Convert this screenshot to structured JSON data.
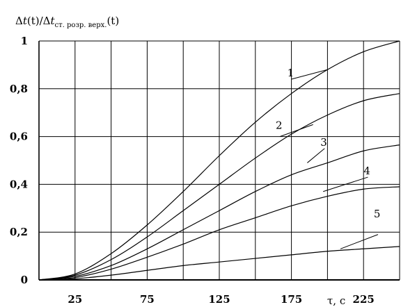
{
  "chart_data": {
    "type": "line",
    "title": "",
    "ylabel": {
      "main_prefix": "Δ",
      "main_var": "t",
      "main_arg": "(t)/Δ",
      "den_var": "t",
      "den_sub": "ст. розр. верх.",
      "den_arg": "(t)"
    },
    "xlabel": "τ, с",
    "xlim": [
      0,
      250
    ],
    "ylim": [
      0,
      1
    ],
    "x_gridlines": [
      0,
      25,
      50,
      75,
      100,
      125,
      150,
      175,
      200,
      225,
      250
    ],
    "y_gridlines": [
      0,
      0.2,
      0.4,
      0.6,
      0.8,
      1
    ],
    "x_ticks": [
      {
        "value": 25,
        "label": "25"
      },
      {
        "value": 75,
        "label": "75"
      },
      {
        "value": 125,
        "label": "125"
      },
      {
        "value": 175,
        "label": "175"
      },
      {
        "value": 225,
        "label": "225"
      }
    ],
    "y_ticks": [
      {
        "value": 0,
        "label": "0"
      },
      {
        "value": 0.2,
        "label": "0,2"
      },
      {
        "value": 0.4,
        "label": "0,4"
      },
      {
        "value": 0.6,
        "label": "0,6"
      },
      {
        "value": 0.8,
        "label": "0,8"
      },
      {
        "value": 1,
        "label": "1"
      }
    ],
    "grid": true,
    "x": [
      0,
      25,
      50,
      75,
      100,
      125,
      150,
      175,
      200,
      225,
      250
    ],
    "series": [
      {
        "name": "1",
        "values": [
          0,
          0.025,
          0.11,
          0.23,
          0.37,
          0.52,
          0.66,
          0.78,
          0.88,
          0.955,
          1.0
        ],
        "label_at": [
          175,
          0.84
        ],
        "leader": [
          [
            175,
            0.84
          ],
          [
            200,
            0.88
          ]
        ]
      },
      {
        "name": "2",
        "values": [
          0,
          0.02,
          0.085,
          0.18,
          0.29,
          0.4,
          0.51,
          0.61,
          0.69,
          0.75,
          0.78
        ],
        "label_at": [
          167,
          0.62
        ],
        "leader": [
          [
            167,
            0.6
          ],
          [
            190,
            0.65
          ]
        ]
      },
      {
        "name": "3",
        "values": [
          0,
          0.015,
          0.06,
          0.13,
          0.21,
          0.29,
          0.37,
          0.44,
          0.49,
          0.54,
          0.565
        ],
        "label_at": [
          198,
          0.55
        ],
        "leader": [
          [
            186,
            0.49
          ],
          [
            198,
            0.55
          ]
        ]
      },
      {
        "name": "4",
        "values": [
          0,
          0.01,
          0.045,
          0.095,
          0.15,
          0.21,
          0.26,
          0.31,
          0.35,
          0.38,
          0.39
        ],
        "label_at": [
          228,
          0.43
        ],
        "leader": [
          [
            197,
            0.37
          ],
          [
            228,
            0.43
          ]
        ]
      },
      {
        "name": "5",
        "values": [
          0,
          0.005,
          0.02,
          0.04,
          0.06,
          0.075,
          0.09,
          0.105,
          0.12,
          0.13,
          0.14
        ],
        "label_at": [
          235,
          0.25
        ],
        "leader": [
          [
            209,
            0.13
          ],
          [
            235,
            0.19
          ]
        ]
      }
    ]
  }
}
